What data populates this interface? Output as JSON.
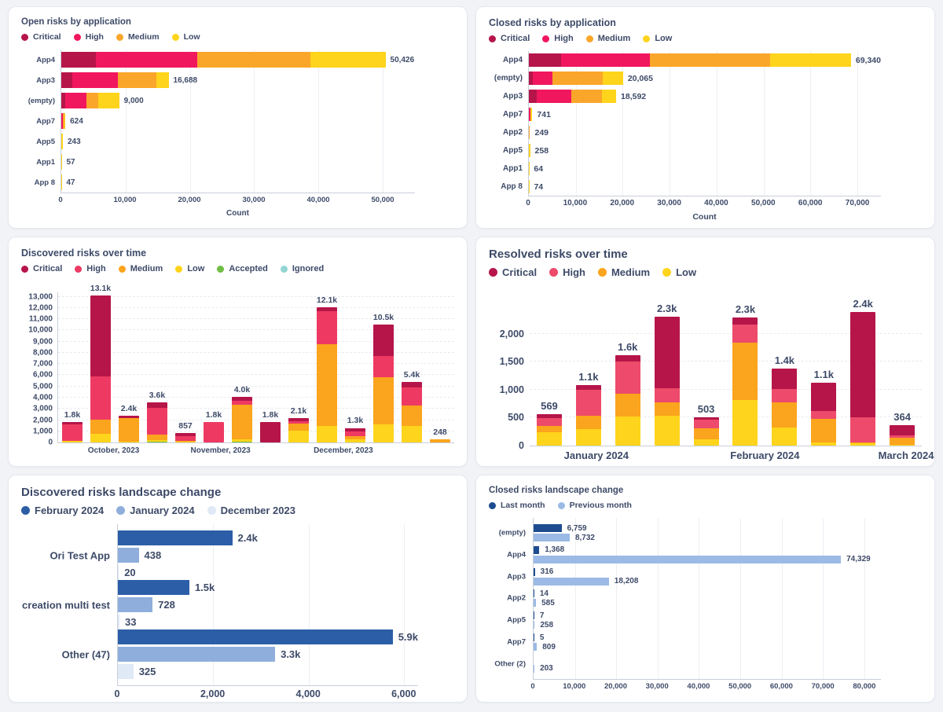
{
  "page": {
    "background": "#F1F3F7",
    "text_color": "#3D4A68"
  },
  "chart_data": [
    {
      "type": "bar",
      "variant": "h-stacked",
      "title": "Open risks by application",
      "legend": [
        {
          "key": "critical",
          "label": "Critical",
          "color": "#B61549"
        },
        {
          "key": "high",
          "label": "High",
          "color": "#F1175E"
        },
        {
          "key": "medium",
          "label": "Medium",
          "color": "#FAA62B"
        },
        {
          "key": "low",
          "label": "Low",
          "color": "#FFD41C"
        }
      ],
      "order": [
        "critical",
        "high",
        "medium",
        "low"
      ],
      "xlabel": "Count",
      "xmax": 55000,
      "ticks": [
        {
          "v": 0,
          "label": "0"
        },
        {
          "v": 10000,
          "label": "10,000"
        },
        {
          "v": 20000,
          "label": "20,000"
        },
        {
          "v": 30000,
          "label": "30,000"
        },
        {
          "v": 40000,
          "label": "40,000"
        },
        {
          "v": 50000,
          "label": "50,000"
        }
      ],
      "rows": [
        {
          "label": "App4",
          "total": 50426,
          "value_label": "50,426",
          "segments": {
            "critical": 5400,
            "high": 15800,
            "medium": 17600,
            "low": 11626
          }
        },
        {
          "label": "App3",
          "total": 16688,
          "value_label": "16,688",
          "segments": {
            "critical": 1700,
            "high": 7100,
            "medium": 6050,
            "low": 1838
          }
        },
        {
          "label": "(empty)",
          "total": 9000,
          "value_label": "9,000",
          "segments": {
            "critical": 550,
            "high": 3300,
            "medium": 1950,
            "low": 3200
          }
        },
        {
          "label": "App7",
          "total": 624,
          "value_label": "624",
          "segments": {
            "high": 300,
            "medium": 150,
            "low": 174
          }
        },
        {
          "label": "App5",
          "total": 243,
          "value_label": "243",
          "segments": {
            "low": 243
          }
        },
        {
          "label": "App1",
          "total": 57,
          "value_label": "57",
          "segments": {
            "low": 57
          }
        },
        {
          "label": "App 8",
          "total": 47,
          "value_label": "47",
          "segments": {
            "low": 47
          }
        }
      ]
    },
    {
      "type": "bar",
      "variant": "h-stacked",
      "title": "Closed risks by application",
      "legend": [
        {
          "key": "critical",
          "label": "Critical",
          "color": "#B61549"
        },
        {
          "key": "high",
          "label": "High",
          "color": "#F1175E"
        },
        {
          "key": "medium",
          "label": "Medium",
          "color": "#FAA62B"
        },
        {
          "key": "low",
          "label": "Low",
          "color": "#FFD41C"
        }
      ],
      "order": [
        "critical",
        "high",
        "medium",
        "low"
      ],
      "xlabel": "Count",
      "xmax": 75000,
      "ticks": [
        {
          "v": 0,
          "label": "0"
        },
        {
          "v": 10000,
          "label": "10,000"
        },
        {
          "v": 20000,
          "label": "20,000"
        },
        {
          "v": 30000,
          "label": "30,000"
        },
        {
          "v": 40000,
          "label": "40,000"
        },
        {
          "v": 50000,
          "label": "50,000"
        },
        {
          "v": 60000,
          "label": "60,000"
        },
        {
          "v": 70000,
          "label": "70,000"
        }
      ],
      "rows": [
        {
          "label": "App4",
          "total": 69340,
          "value_label": "69,340",
          "segments": {
            "critical": 7000,
            "high": 19000,
            "medium": 26000,
            "low": 17340
          }
        },
        {
          "label": "(empty)",
          "total": 20065,
          "value_label": "20,065",
          "segments": {
            "critical": 800,
            "high": 4200,
            "medium": 10700,
            "low": 4365
          }
        },
        {
          "label": "App3",
          "total": 18592,
          "value_label": "18,592",
          "segments": {
            "critical": 1700,
            "high": 7400,
            "medium": 6400,
            "low": 3092
          }
        },
        {
          "label": "App7",
          "total": 741,
          "value_label": "741",
          "segments": {
            "high": 380,
            "low": 361
          }
        },
        {
          "label": "App2",
          "total": 249,
          "value_label": "249",
          "segments": {
            "medium": 249
          }
        },
        {
          "label": "App5",
          "total": 258,
          "value_label": "258",
          "segments": {
            "low": 258
          }
        },
        {
          "label": "App1",
          "total": 64,
          "value_label": "64",
          "segments": {
            "low": 64
          }
        },
        {
          "label": "App 8",
          "total": 74,
          "value_label": "74",
          "segments": {
            "low": 74
          }
        }
      ]
    },
    {
      "type": "bar",
      "variant": "v-stacked",
      "title": "Discovered risks over time",
      "legend": [
        {
          "key": "critical",
          "label": "Critical",
          "color": "#B61549"
        },
        {
          "key": "high",
          "label": "High",
          "color": "#EE3A63"
        },
        {
          "key": "medium",
          "label": "Medium",
          "color": "#FBA41D"
        },
        {
          "key": "low",
          "label": "Low",
          "color": "#FFD41C"
        },
        {
          "key": "accepted",
          "label": "Accepted",
          "color": "#70BE44"
        },
        {
          "key": "ignored",
          "label": "Ignored",
          "color": "#93D5D2"
        }
      ],
      "order": [
        "ignored",
        "accepted",
        "low",
        "medium",
        "high",
        "critical"
      ],
      "ymax": 13400,
      "y_ticks": [
        {
          "v": 0,
          "label": "0"
        },
        {
          "v": 1000,
          "label": "1,000"
        },
        {
          "v": 2000,
          "label": "2,000"
        },
        {
          "v": 3000,
          "label": "3,000"
        },
        {
          "v": 4000,
          "label": "4,000"
        },
        {
          "v": 5000,
          "label": "5,000"
        },
        {
          "v": 6000,
          "label": "6,000"
        },
        {
          "v": 7000,
          "label": "7,000"
        },
        {
          "v": 8000,
          "label": "8,000"
        },
        {
          "v": 9000,
          "label": "9,000"
        },
        {
          "v": 10000,
          "label": "10,000"
        },
        {
          "v": 11000,
          "label": "11,000"
        },
        {
          "v": 12000,
          "label": "12,000"
        },
        {
          "v": 13000,
          "label": "13,000"
        }
      ],
      "x_group_labels": [
        {
          "label": "October, 2023",
          "pos": 14
        },
        {
          "label": "November, 2023",
          "pos": 41
        },
        {
          "label": "December, 2023",
          "pos": 72
        }
      ],
      "bars": [
        {
          "value_label": "1.8k",
          "segments": {
            "accepted": 30,
            "low": 80,
            "medium": 30,
            "high": 1450,
            "critical": 210
          }
        },
        {
          "value_label": "13.1k",
          "segments": {
            "low": 750,
            "medium": 1280,
            "high": 3860,
            "critical": 7210
          }
        },
        {
          "value_label": "2.4k",
          "segments": {
            "low": 100,
            "medium": 2050,
            "high": 30,
            "critical": 220
          }
        },
        {
          "value_label": "3.6k",
          "segments": {
            "accepted": 40,
            "low": 150,
            "medium": 520,
            "high": 2390,
            "critical": 500
          }
        },
        {
          "value_label": "857",
          "segments": {
            "low": 80,
            "medium": 40,
            "high": 470,
            "critical": 267
          }
        },
        {
          "value_label": "1.8k",
          "segments": {
            "accepted": 30,
            "high": 1770
          }
        },
        {
          "value_label": "4.0k",
          "segments": {
            "accepted": 60,
            "low": 250,
            "medium": 3050,
            "high": 340,
            "critical": 350
          }
        },
        {
          "value_label": "1.8k",
          "segments": {
            "critical": 1800
          }
        },
        {
          "value_label": "2.1k",
          "segments": {
            "low": 1050,
            "medium": 600,
            "high": 250,
            "critical": 250
          }
        },
        {
          "value_label": "12.1k",
          "segments": {
            "low": 1500,
            "medium": 7300,
            "high": 2900,
            "critical": 400
          }
        },
        {
          "value_label": "1.3k",
          "segments": {
            "low": 300,
            "medium": 250,
            "high": 450,
            "critical": 300
          }
        },
        {
          "value_label": "10.5k",
          "segments": {
            "low": 1600,
            "medium": 4200,
            "high": 1900,
            "critical": 2800
          }
        },
        {
          "value_label": "5.4k",
          "segments": {
            "low": 1450,
            "medium": 1850,
            "high": 1600,
            "critical": 500
          }
        },
        {
          "value_label": "248",
          "segments": {
            "medium": 248
          }
        }
      ]
    },
    {
      "type": "bar",
      "variant": "v-stacked",
      "title": "Resolved risks over time",
      "legend": [
        {
          "key": "critical",
          "label": "Critical",
          "color": "#B61549"
        },
        {
          "key": "high",
          "label": "High",
          "color": "#EE4A6B"
        },
        {
          "key": "medium",
          "label": "Medium",
          "color": "#FBA41D"
        },
        {
          "key": "low",
          "label": "Low",
          "color": "#FFD41C"
        }
      ],
      "order": [
        "low",
        "medium",
        "high",
        "critical"
      ],
      "ymax": 2600,
      "y_ticks": [
        {
          "v": 0,
          "label": "0"
        },
        {
          "v": 500,
          "label": "500"
        },
        {
          "v": 1000,
          "label": "1,000"
        },
        {
          "v": 1500,
          "label": "1,500"
        },
        {
          "v": 2000,
          "label": "2,000"
        }
      ],
      "x_group_labels": [
        {
          "label": "January 2024",
          "pos": 17
        },
        {
          "label": "February 2024",
          "pos": 60
        },
        {
          "label": "March 2024",
          "pos": 96
        }
      ],
      "bars": [
        {
          "value_label": "569",
          "segments": {
            "low": 240,
            "medium": 110,
            "high": 140,
            "critical": 79
          }
        },
        {
          "value_label": "1.1k",
          "segments": {
            "low": 290,
            "medium": 250,
            "high": 460,
            "critical": 80
          }
        },
        {
          "value_label": "1.6k",
          "segments": {
            "low": 520,
            "medium": 410,
            "high": 580,
            "critical": 110
          }
        },
        {
          "value_label": "2.3k",
          "segments": {
            "low": 540,
            "medium": 240,
            "high": 250,
            "critical": 1270
          }
        },
        {
          "value_label": "503",
          "segments": {
            "low": 110,
            "medium": 200,
            "high": 150,
            "critical": 43
          }
        },
        {
          "value_label": "2.3k",
          "segments": {
            "low": 810,
            "medium": 1030,
            "high": 330,
            "critical": 120
          }
        },
        {
          "value_label": "1.4k",
          "segments": {
            "low": 320,
            "medium": 450,
            "high": 240,
            "critical": 370
          }
        },
        {
          "value_label": "1.1k",
          "segments": {
            "low": 50,
            "medium": 430,
            "high": 140,
            "critical": 505
          }
        },
        {
          "value_label": "2.4k",
          "segments": {
            "low": 40,
            "medium": 20,
            "high": 440,
            "critical": 1890
          }
        },
        {
          "value_label": "364",
          "segments": {
            "low": 10,
            "medium": 130,
            "high": 40,
            "critical": 184
          }
        }
      ]
    },
    {
      "type": "bar",
      "variant": "h-grouped",
      "title": "Discovered risks landscape change",
      "legend": [
        {
          "key": "feb2024",
          "label": "February 2024",
          "color": "#2C5EA7"
        },
        {
          "key": "jan2024",
          "label": "January 2024",
          "color": "#8FAEDC"
        },
        {
          "key": "dec2023",
          "label": "December 2023",
          "color": "#E0E9F6"
        }
      ],
      "xmax": 6300,
      "ticks": [
        {
          "v": 0,
          "label": "0"
        },
        {
          "v": 2000,
          "label": "2,000"
        },
        {
          "v": 4000,
          "label": "4,000"
        },
        {
          "v": 6000,
          "label": "6,000"
        }
      ],
      "groups": [
        {
          "label": "Ori Test App",
          "values": [
            {
              "v": 2400,
              "label": "2.4k"
            },
            {
              "v": 438,
              "label": "438"
            },
            {
              "v": 20,
              "label": "20"
            }
          ]
        },
        {
          "label": "creation multi test",
          "values": [
            {
              "v": 1500,
              "label": "1.5k"
            },
            {
              "v": 728,
              "label": "728"
            },
            {
              "v": 33,
              "label": "33"
            }
          ]
        },
        {
          "label": "Other (47)",
          "values": [
            {
              "v": 5900,
              "label": "5.9k"
            },
            {
              "v": 3300,
              "label": "3.3k"
            },
            {
              "v": 325,
              "label": "325"
            }
          ]
        }
      ]
    },
    {
      "type": "bar",
      "variant": "h-grouped",
      "title": "Closed risks landscape change",
      "legend": [
        {
          "key": "last",
          "label": "Last month",
          "color": "#1D4D90"
        },
        {
          "key": "previous",
          "label": "Previous month",
          "color": "#9BBAE5"
        }
      ],
      "xmax": 84000,
      "ticks": [
        {
          "v": 0,
          "label": "0"
        },
        {
          "v": 10000,
          "label": "10,000"
        },
        {
          "v": 20000,
          "label": "20,000"
        },
        {
          "v": 30000,
          "label": "30,000"
        },
        {
          "v": 40000,
          "label": "40,000"
        },
        {
          "v": 50000,
          "label": "50,000"
        },
        {
          "v": 60000,
          "label": "60,000"
        },
        {
          "v": 70000,
          "label": "70,000"
        },
        {
          "v": 80000,
          "label": "80,000"
        }
      ],
      "groups": [
        {
          "label": "(empty)",
          "values": [
            {
              "v": 6759,
              "label": "6,759"
            },
            {
              "v": 8732,
              "label": "8,732"
            }
          ]
        },
        {
          "label": "App4",
          "values": [
            {
              "v": 1368,
              "label": "1,368"
            },
            {
              "v": 74329,
              "label": "74,329"
            }
          ]
        },
        {
          "label": "App3",
          "values": [
            {
              "v": 316,
              "label": "316"
            },
            {
              "v": 18208,
              "label": "18,208"
            }
          ]
        },
        {
          "label": "App2",
          "values": [
            {
              "v": 14,
              "label": "14"
            },
            {
              "v": 585,
              "label": "585"
            }
          ]
        },
        {
          "label": "App5",
          "values": [
            {
              "v": 7,
              "label": "7"
            },
            {
              "v": 258,
              "label": "258"
            }
          ]
        },
        {
          "label": "App7",
          "values": [
            {
              "v": 5,
              "label": "5"
            },
            {
              "v": 809,
              "label": "809"
            }
          ]
        },
        {
          "label": "Other (2)",
          "values": [
            {
              "v": null,
              "label": null
            },
            {
              "v": 203,
              "label": "203"
            }
          ]
        }
      ]
    }
  ]
}
